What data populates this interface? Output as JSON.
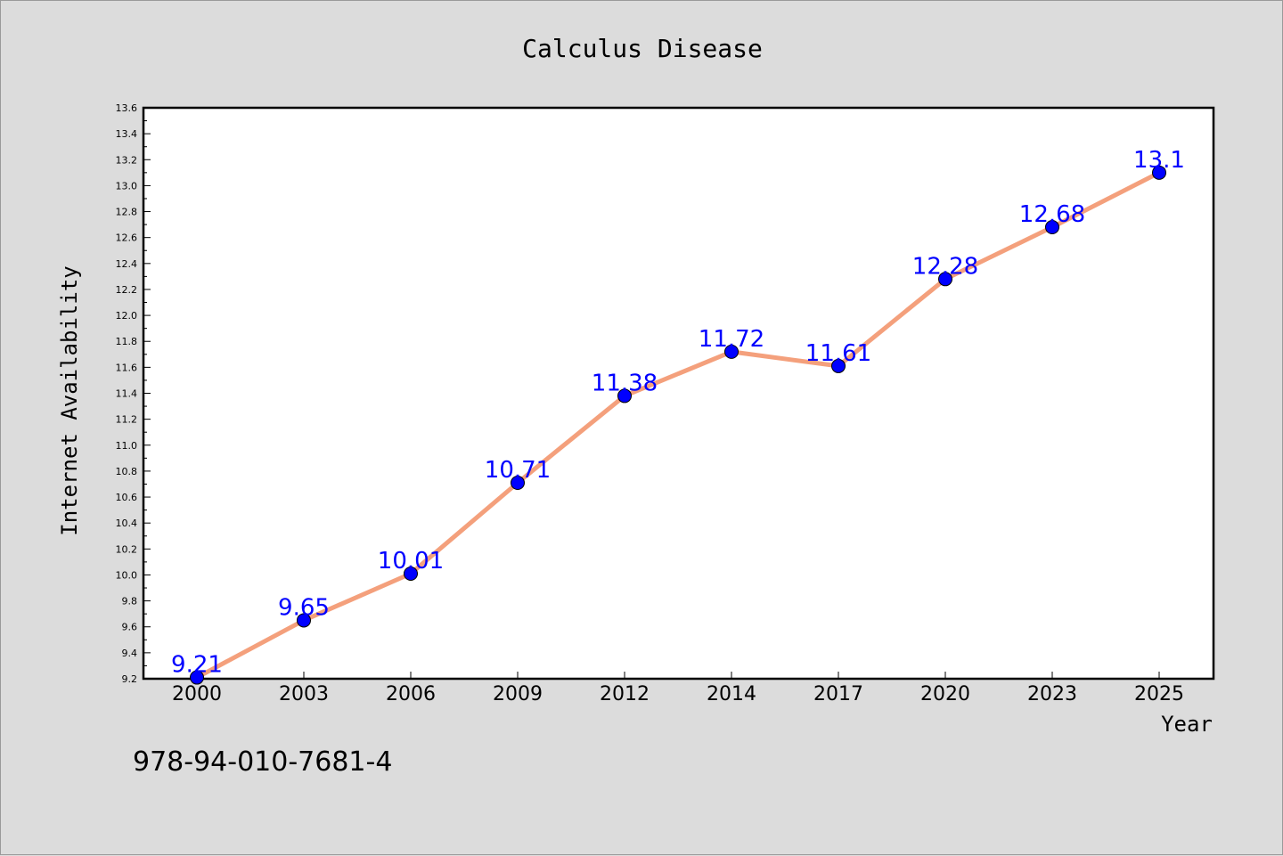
{
  "chart_data": {
    "type": "line",
    "title": "Calculus Disease",
    "xlabel": "Year",
    "ylabel": "Internet Availability",
    "categories": [
      "2000",
      "2003",
      "2006",
      "2009",
      "2012",
      "2014",
      "2017",
      "2020",
      "2023",
      "2025"
    ],
    "values": [
      9.21,
      9.65,
      10.01,
      10.71,
      11.38,
      11.72,
      11.61,
      12.28,
      12.68,
      13.1
    ],
    "data_labels": [
      "9.21",
      "9.65",
      "10.01",
      "10.71",
      "11.38",
      "11.72",
      "11.61",
      "12.28",
      "12.68",
      "13.1"
    ],
    "ylim": [
      9.2,
      13.6
    ],
    "yticks": [
      "9.2",
      "9.4",
      "9.6",
      "9.8",
      "10.0",
      "10.2",
      "10.4",
      "10.6",
      "10.8",
      "11.0",
      "11.2",
      "11.4",
      "11.6",
      "11.8",
      "12.0",
      "12.2",
      "12.4",
      "12.6",
      "12.8",
      "13.0",
      "13.2",
      "13.4",
      "13.6"
    ],
    "grid": false,
    "line_color": "#f4a07c",
    "marker_color": "#0000ff",
    "label_color": "#0000ff"
  },
  "footer": {
    "code": "978-94-010-7681-4"
  }
}
